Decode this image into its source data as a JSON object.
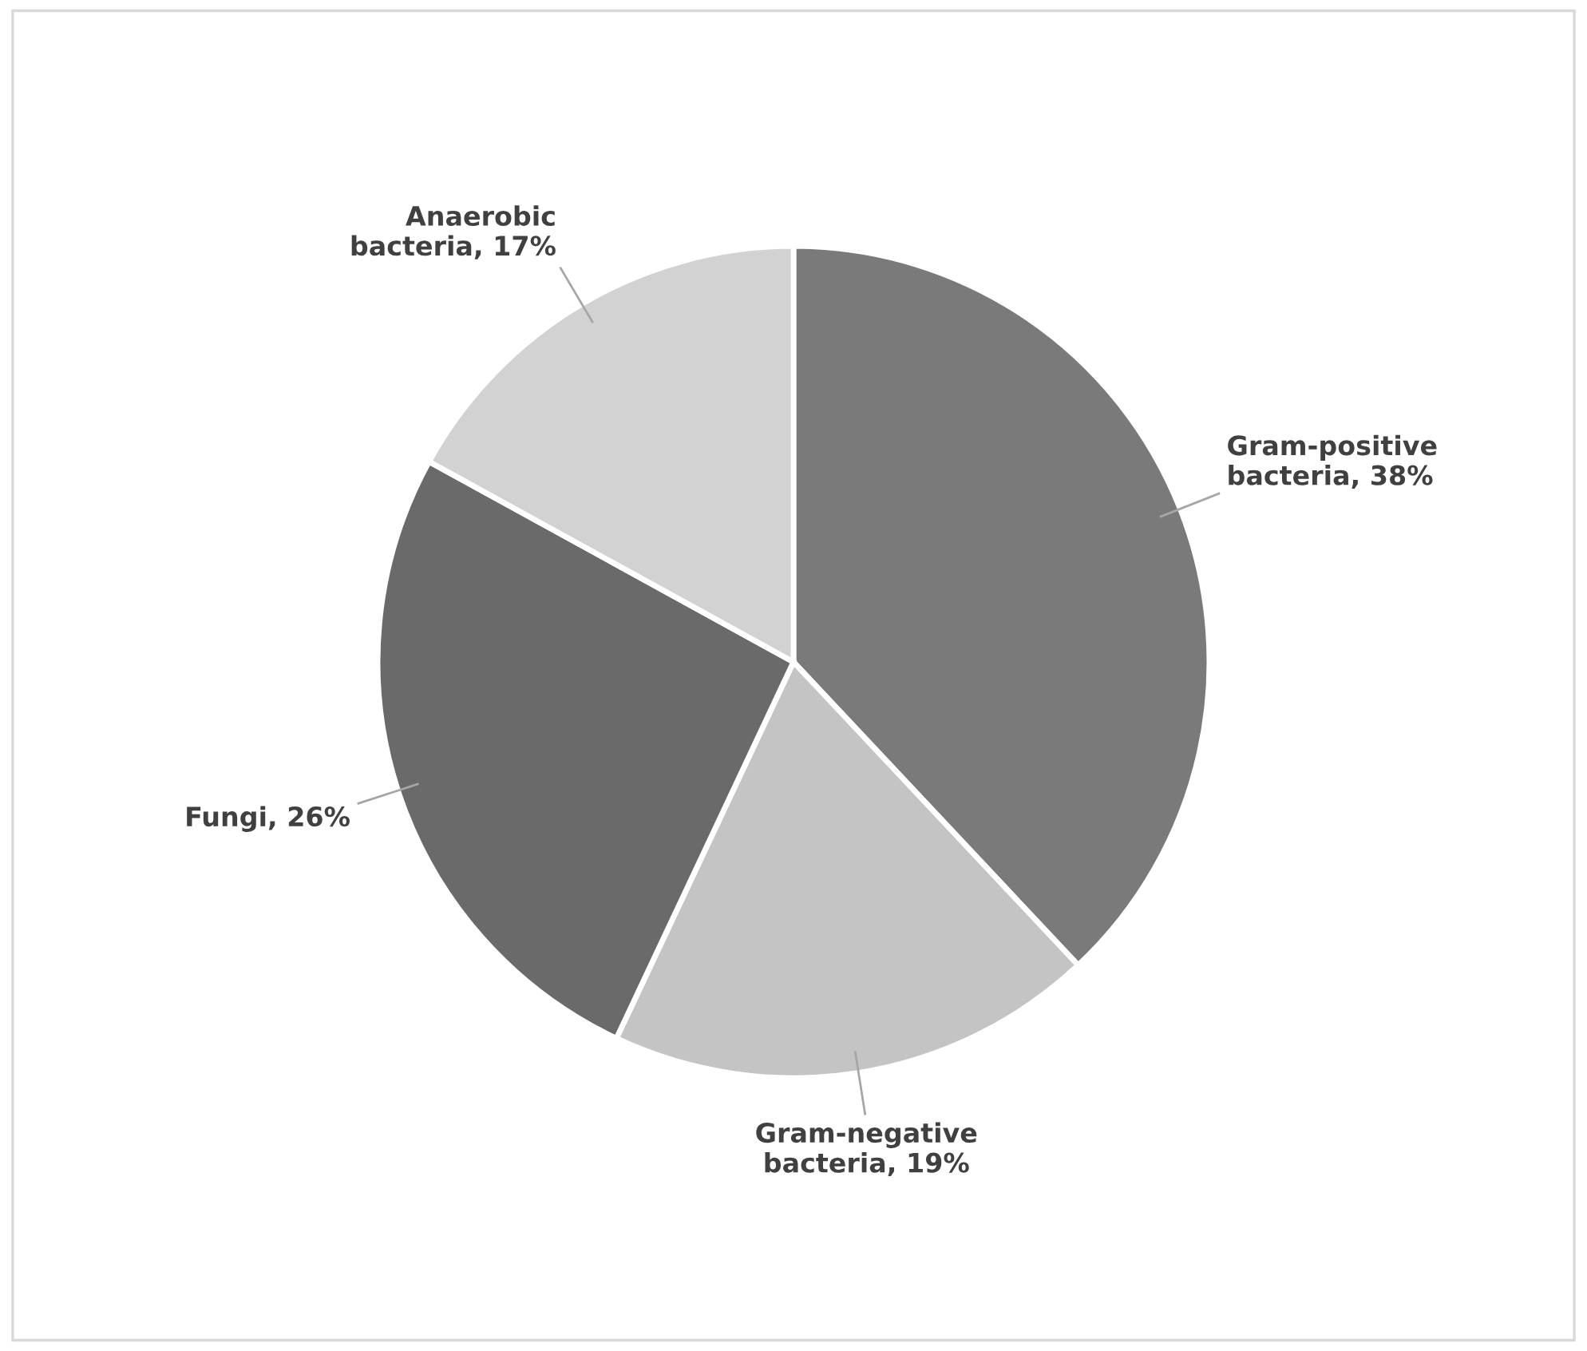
{
  "chart_data": {
    "type": "pie",
    "categories": [
      "Gram-positive bacteria",
      "Gram-negative bacteria",
      "Fungi",
      "Anaerobic bacteria"
    ],
    "values": [
      38,
      19,
      26,
      17
    ],
    "value_labels": [
      "38%",
      "19%",
      "26%",
      "17%"
    ],
    "colors": [
      "#7a7a7a",
      "#c4c4c4",
      "#6a6a6a",
      "#d2d2d2"
    ],
    "legend": false
  }
}
